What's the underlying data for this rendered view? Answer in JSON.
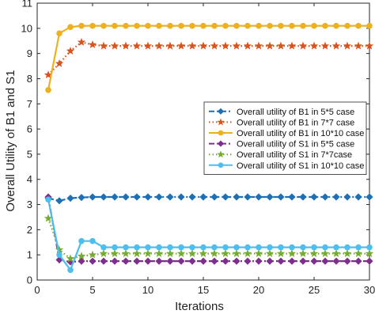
{
  "chart_data": {
    "type": "line",
    "title": "",
    "xlabel": "Iterations",
    "ylabel": "Overall Utility of B1 and S1",
    "xlim": [
      0,
      30
    ],
    "ylim": [
      0,
      11
    ],
    "xticks": [
      0,
      5,
      10,
      15,
      20,
      25,
      30
    ],
    "yticks": [
      0,
      1,
      2,
      3,
      4,
      5,
      6,
      7,
      8,
      9,
      10,
      11
    ],
    "grid": false,
    "legend_position": "center-right",
    "x": [
      1,
      2,
      3,
      4,
      5,
      6,
      7,
      8,
      9,
      10,
      11,
      12,
      13,
      14,
      15,
      16,
      17,
      18,
      19,
      20,
      21,
      22,
      23,
      24,
      25,
      26,
      27,
      28,
      29,
      30
    ],
    "series": [
      {
        "name": "Overall utility of B1 in 5*5 case",
        "color": "#1f6fb4",
        "dash": "dashdot",
        "marker": "diamond",
        "values": [
          3.25,
          3.15,
          3.25,
          3.28,
          3.3,
          3.3,
          3.3,
          3.3,
          3.3,
          3.3,
          3.3,
          3.3,
          3.3,
          3.3,
          3.3,
          3.3,
          3.3,
          3.3,
          3.3,
          3.3,
          3.3,
          3.3,
          3.3,
          3.3,
          3.3,
          3.3,
          3.3,
          3.3,
          3.3,
          3.3
        ]
      },
      {
        "name": "Overall utility of B1 in 7*7 case",
        "color": "#d9531e",
        "dash": "dotted",
        "marker": "star",
        "values": [
          8.15,
          8.6,
          9.1,
          9.45,
          9.35,
          9.3,
          9.3,
          9.3,
          9.3,
          9.3,
          9.3,
          9.3,
          9.3,
          9.3,
          9.3,
          9.3,
          9.3,
          9.3,
          9.3,
          9.3,
          9.3,
          9.3,
          9.3,
          9.3,
          9.3,
          9.3,
          9.3,
          9.3,
          9.3,
          9.3
        ]
      },
      {
        "name": "Overall utility of B1 in 10*10 case",
        "color": "#edb120",
        "dash": "solid",
        "marker": "circle",
        "values": [
          7.55,
          9.8,
          10.05,
          10.1,
          10.1,
          10.1,
          10.1,
          10.1,
          10.1,
          10.1,
          10.1,
          10.1,
          10.1,
          10.1,
          10.1,
          10.1,
          10.1,
          10.1,
          10.1,
          10.1,
          10.1,
          10.1,
          10.1,
          10.1,
          10.1,
          10.1,
          10.1,
          10.1,
          10.1,
          10.1
        ]
      },
      {
        "name": "Overall utility of S1 in 5*5 case",
        "color": "#7e2f8e",
        "dash": "dashdot",
        "marker": "diamond",
        "values": [
          3.3,
          0.8,
          0.72,
          0.75,
          0.75,
          0.75,
          0.75,
          0.75,
          0.75,
          0.75,
          0.75,
          0.75,
          0.75,
          0.75,
          0.75,
          0.75,
          0.75,
          0.75,
          0.75,
          0.75,
          0.75,
          0.75,
          0.75,
          0.75,
          0.75,
          0.75,
          0.75,
          0.75,
          0.75,
          0.75
        ]
      },
      {
        "name": "Overall utility of S1 in 7*7case",
        "color": "#77ac30",
        "dash": "dotted",
        "marker": "star",
        "values": [
          2.45,
          1.2,
          0.85,
          0.95,
          1.0,
          1.05,
          1.05,
          1.05,
          1.05,
          1.05,
          1.05,
          1.05,
          1.05,
          1.05,
          1.05,
          1.05,
          1.05,
          1.05,
          1.05,
          1.05,
          1.05,
          1.05,
          1.05,
          1.05,
          1.05,
          1.05,
          1.05,
          1.05,
          1.05,
          1.05
        ]
      },
      {
        "name": "Overall utility of S1 in 10*10 case",
        "color": "#4dbeee",
        "dash": "solid",
        "marker": "circle",
        "values": [
          3.2,
          1.0,
          0.4,
          1.55,
          1.55,
          1.3,
          1.3,
          1.3,
          1.3,
          1.3,
          1.3,
          1.3,
          1.3,
          1.3,
          1.3,
          1.3,
          1.3,
          1.3,
          1.3,
          1.3,
          1.3,
          1.3,
          1.3,
          1.3,
          1.3,
          1.3,
          1.3,
          1.3,
          1.3,
          1.3
        ]
      }
    ]
  }
}
